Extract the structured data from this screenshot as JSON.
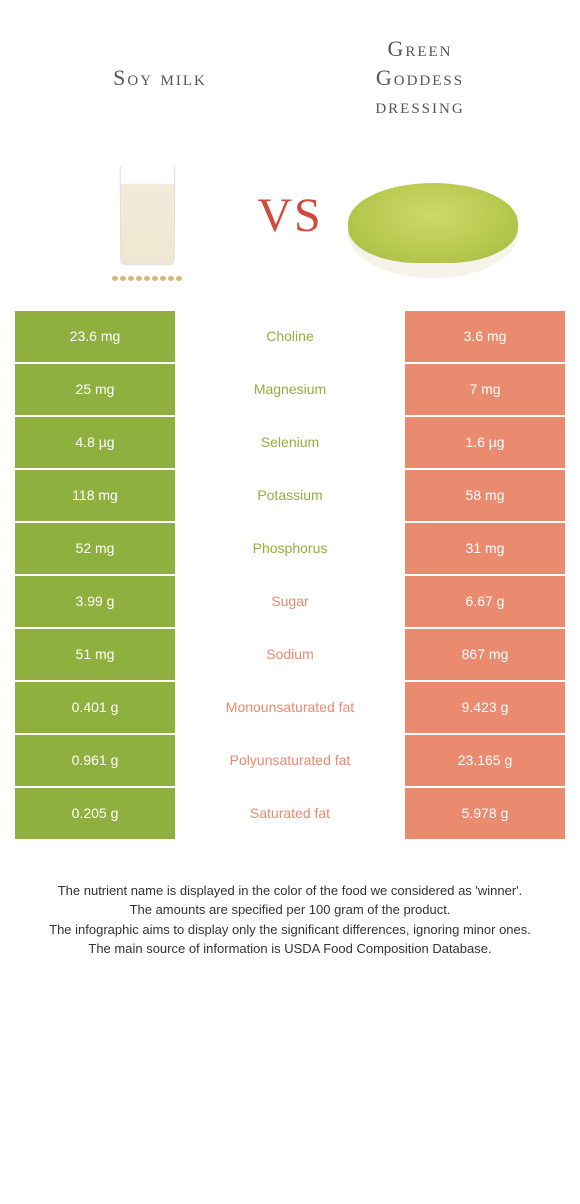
{
  "colors": {
    "left_green": "#8fb03e",
    "right_salmon": "#ea8a6e",
    "mid_text_green": "#8fb03e",
    "mid_text_salmon": "#ea8a6e",
    "vs": "#d14a3a"
  },
  "header": {
    "left_title": "Soy milk",
    "right_title": "Green\nGoddess\ndressing",
    "vs": "VS"
  },
  "rows": [
    {
      "left": "23.6 mg",
      "label": "Choline",
      "right": "3.6 mg",
      "winner": "left"
    },
    {
      "left": "25 mg",
      "label": "Magnesium",
      "right": "7 mg",
      "winner": "left"
    },
    {
      "left": "4.8 µg",
      "label": "Selenium",
      "right": "1.6 µg",
      "winner": "left"
    },
    {
      "left": "118 mg",
      "label": "Potassium",
      "right": "58 mg",
      "winner": "left"
    },
    {
      "left": "52 mg",
      "label": "Phosphorus",
      "right": "31 mg",
      "winner": "left"
    },
    {
      "left": "3.99 g",
      "label": "Sugar",
      "right": "6.67 g",
      "winner": "right"
    },
    {
      "left": "51 mg",
      "label": "Sodium",
      "right": "867 mg",
      "winner": "right"
    },
    {
      "left": "0.401 g",
      "label": "Monounsaturated fat",
      "right": "9.423 g",
      "winner": "right"
    },
    {
      "left": "0.961 g",
      "label": "Polyunsaturated fat",
      "right": "23.165 g",
      "winner": "right"
    },
    {
      "left": "0.205 g",
      "label": "Saturated fat",
      "right": "5.978 g",
      "winner": "right"
    }
  ],
  "footnotes": [
    "The nutrient name is displayed in the color of the food we considered as 'winner'.",
    "The amounts are specified per 100 gram of the product.",
    "The infographic aims to display only the significant differences, ignoring minor ones.",
    "The main source of information is USDA Food Composition Database."
  ]
}
